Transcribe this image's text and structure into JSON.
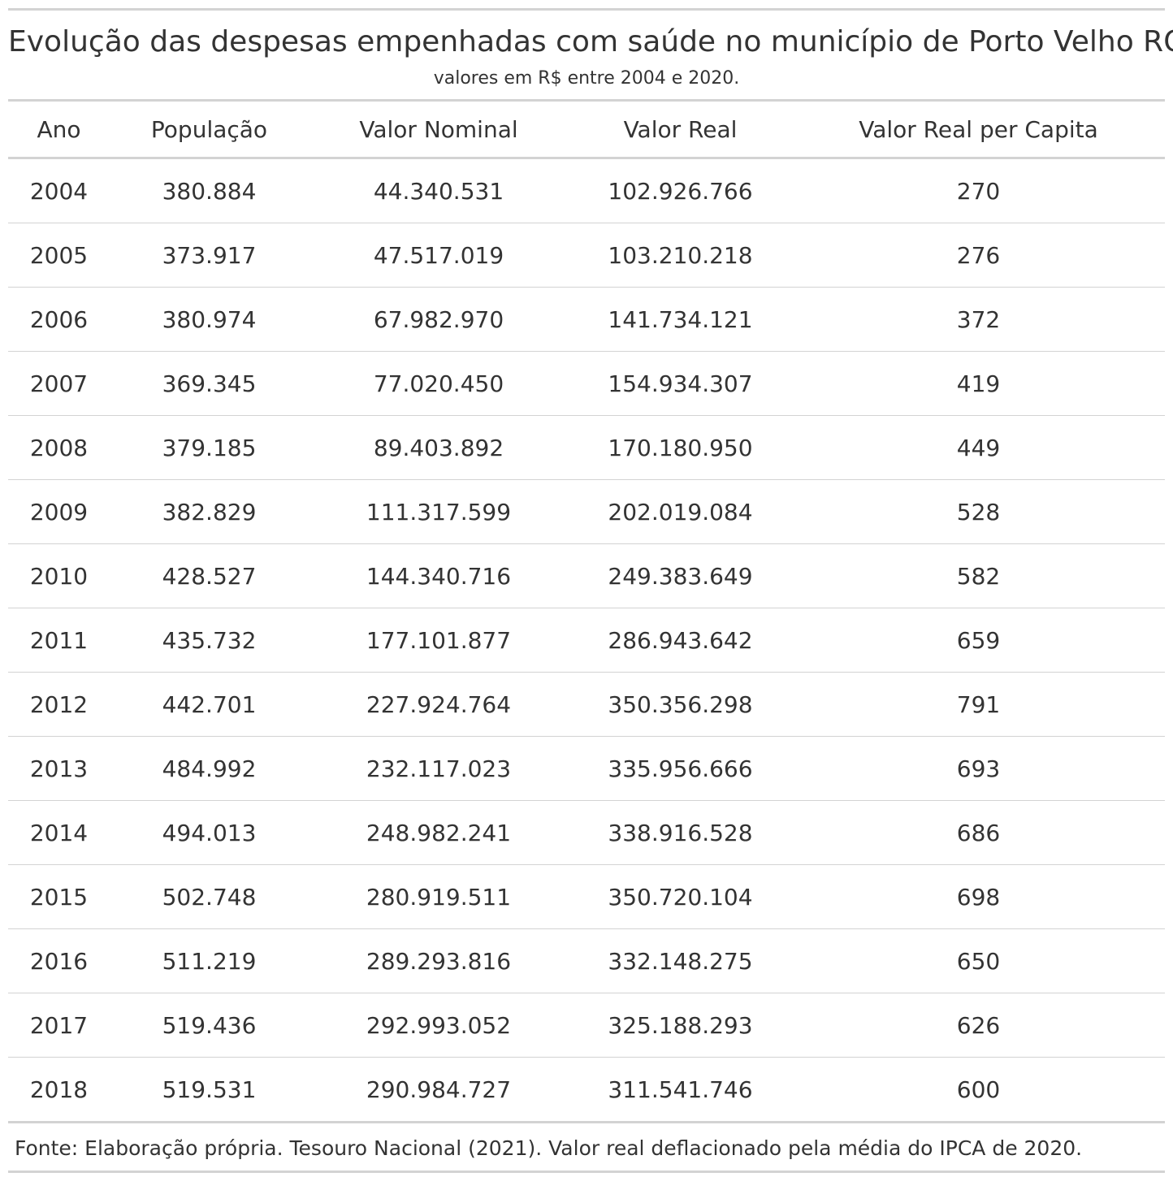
{
  "title": "Evolução das despesas empenhadas com saúde no município de Porto Velho RO",
  "subtitle": "valores em R$ entre 2004 e 2020.",
  "columns": [
    "Ano",
    "População",
    "Valor Nominal",
    "Valor Real",
    "Valor Real per Capita"
  ],
  "rows": [
    [
      "2004",
      "380.884",
      "44.340.531",
      "102.926.766",
      "270"
    ],
    [
      "2005",
      "373.917",
      "47.517.019",
      "103.210.218",
      "276"
    ],
    [
      "2006",
      "380.974",
      "67.982.970",
      "141.734.121",
      "372"
    ],
    [
      "2007",
      "369.345",
      "77.020.450",
      "154.934.307",
      "419"
    ],
    [
      "2008",
      "379.185",
      "89.403.892",
      "170.180.950",
      "449"
    ],
    [
      "2009",
      "382.829",
      "111.317.599",
      "202.019.084",
      "528"
    ],
    [
      "2010",
      "428.527",
      "144.340.716",
      "249.383.649",
      "582"
    ],
    [
      "2011",
      "435.732",
      "177.101.877",
      "286.943.642",
      "659"
    ],
    [
      "2012",
      "442.701",
      "227.924.764",
      "350.356.298",
      "791"
    ],
    [
      "2013",
      "484.992",
      "232.117.023",
      "335.956.666",
      "693"
    ],
    [
      "2014",
      "494.013",
      "248.982.241",
      "338.916.528",
      "686"
    ],
    [
      "2015",
      "502.748",
      "280.919.511",
      "350.720.104",
      "698"
    ],
    [
      "2016",
      "511.219",
      "289.293.816",
      "332.148.275",
      "650"
    ],
    [
      "2017",
      "519.436",
      "292.993.052",
      "325.188.293",
      "626"
    ],
    [
      "2018",
      "519.531",
      "290.984.727",
      "311.541.746",
      "600"
    ]
  ],
  "footer": "Fonte: Elaboração própria. Tesouro Nacional (2021). Valor real deflacionado pela média do IPCA de 2020."
}
